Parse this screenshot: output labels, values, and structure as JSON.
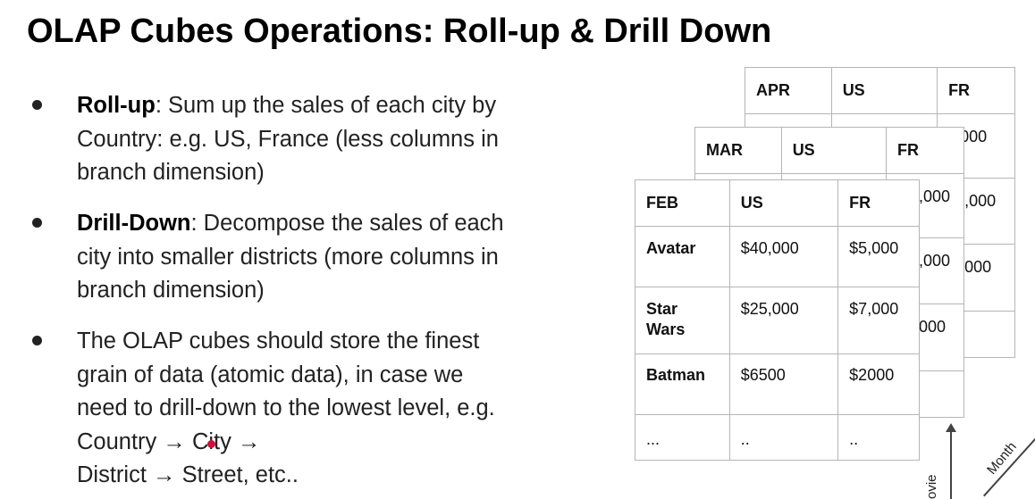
{
  "title": "OLAP Cubes Operations: Roll-up & Drill Down",
  "bullets": [
    {
      "term": "Roll-up",
      "text": ": Sum up the sales of each city by Country: e.g. US, France (less columns in branch dimension)"
    },
    {
      "term": "Drill-Down",
      "text": ": Decompose the sales of each city into smaller districts (more columns in branch dimension)"
    },
    {
      "line1": "The OLAP cubes should store the finest grain of data (atomic data), in case we need to drill-down to the lowest level, e.g. Country → Cit",
      "line2": "y →",
      "line3": "District → Street, etc.."
    }
  ],
  "sheets": {
    "apr": {
      "headers": [
        "APR",
        "US",
        "FR"
      ],
      "fr_values": [
        ",000",
        "7,000",
        "2000",
        ""
      ]
    },
    "mar": {
      "headers": [
        "MAR",
        "US",
        "FR"
      ],
      "fr_values": [
        ",000",
        ",000",
        "000",
        ""
      ]
    },
    "feb": {
      "headers": [
        "FEB",
        "US",
        "FR"
      ],
      "rows": [
        [
          "Avatar",
          "$40,000",
          "$5,000"
        ],
        [
          "Star Wars",
          "$25,000",
          "$7,000"
        ],
        [
          "Batman",
          "$6500",
          "$2000"
        ],
        [
          "...",
          "..",
          ".."
        ]
      ]
    }
  },
  "axes": {
    "month": "Month",
    "movie": "ovie"
  }
}
